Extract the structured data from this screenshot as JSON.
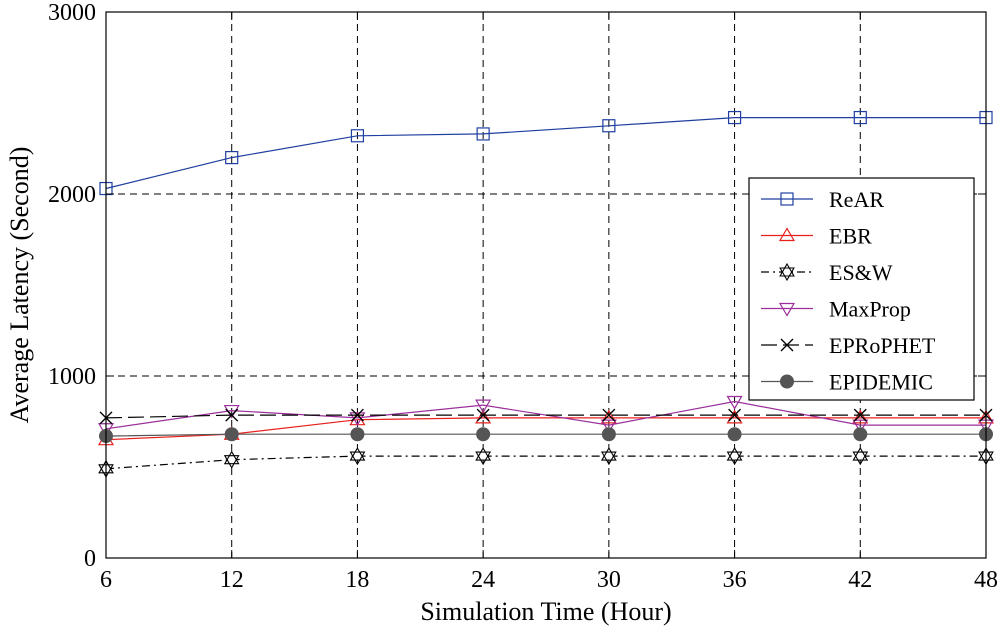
{
  "chart_data": {
    "type": "line",
    "title": "",
    "xlabel": "Simulation Time (Hour)",
    "ylabel": "Average Latency (Second)",
    "x": [
      6,
      12,
      18,
      24,
      30,
      36,
      42,
      48
    ],
    "xlim": [
      6,
      48
    ],
    "ylim": [
      0,
      3000
    ],
    "xticks": [
      "6",
      "12",
      "18",
      "24",
      "30",
      "36",
      "42",
      "48"
    ],
    "yticks": [
      "0",
      "1000",
      "2000",
      "3000"
    ],
    "grid": true,
    "legend_position": "right",
    "series": [
      {
        "name": "ReAR",
        "values": [
          2030,
          2200,
          2320,
          2330,
          2375,
          2420,
          2420,
          2420
        ],
        "color": "#1f3fa0",
        "marker": "square",
        "dash": "solid"
      },
      {
        "name": "EBR",
        "values": [
          650,
          680,
          760,
          770,
          770,
          770,
          770,
          770
        ],
        "color": "#e8211d",
        "marker": "triangle-up",
        "dash": "solid"
      },
      {
        "name": "ES&W",
        "values": [
          490,
          540,
          560,
          560,
          560,
          560,
          560,
          560
        ],
        "color": "#000000",
        "marker": "hexagram",
        "dash": "dashdot"
      },
      {
        "name": "MaxProp",
        "values": [
          710,
          810,
          770,
          840,
          730,
          860,
          730,
          730
        ],
        "color": "#9b2f9b",
        "marker": "triangle-down",
        "dash": "solid"
      },
      {
        "name": "EPRoPHET",
        "values": [
          770,
          785,
          785,
          785,
          785,
          785,
          785,
          785
        ],
        "color": "#000000",
        "marker": "x",
        "dash": "longdash"
      },
      {
        "name": "EPIDEMIC",
        "values": [
          670,
          680,
          680,
          680,
          680,
          680,
          680,
          680
        ],
        "color": "#555555",
        "marker": "circle",
        "dash": "solid"
      }
    ]
  }
}
